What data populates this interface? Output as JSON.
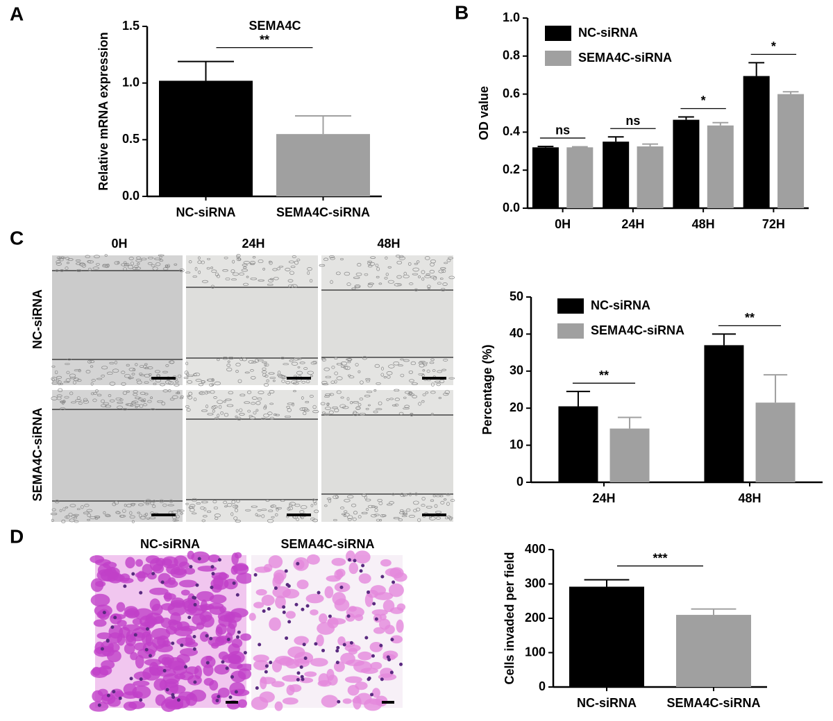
{
  "figure": {
    "panel_labels": [
      "A",
      "B",
      "C",
      "D"
    ],
    "wound_columns": [
      "0H",
      "24H",
      "48H"
    ],
    "wound_rows": [
      "NC-siRNA",
      "SEMA4C-siRNA"
    ],
    "invasion_columns": [
      "NC-siRNA",
      "SEMA4C-siRNA"
    ]
  },
  "chart_data": [
    {
      "type": "bar",
      "title": "SEMA4C",
      "ylabel": "Relative mRNA expression",
      "categories": [
        "NC-siRNA",
        "SEMA4C-siRNA"
      ],
      "values": [
        1.02,
        0.55
      ],
      "errors": [
        0.17,
        0.16
      ],
      "colors": [
        "#000000",
        "#a0a0a0"
      ],
      "annotation": "**",
      "ylim": [
        0,
        1.5
      ],
      "yticks": [
        {
          "value": 0,
          "label": "0.0"
        },
        0.5,
        {
          "value": 1,
          "label": "1.0"
        },
        1.5
      ]
    },
    {
      "type": "grouped-bar",
      "ylabel": "OD value",
      "legend": "top-left",
      "categories": [
        "0H",
        "24H",
        "48H",
        "72H"
      ],
      "series": [
        {
          "name": "NC-siRNA",
          "color": "#000000",
          "values": [
            0.32,
            0.35,
            0.465,
            0.695
          ],
          "errors": [
            0.005,
            0.025,
            0.015,
            0.07
          ]
        },
        {
          "name": "SEMA4C-siRNA",
          "color": "#a0a0a0",
          "values": [
            0.32,
            0.325,
            0.435,
            0.6
          ],
          "errors": [
            0.003,
            0.012,
            0.015,
            0.012
          ]
        }
      ],
      "annotations": [
        "ns",
        "ns",
        "*",
        "*"
      ],
      "ylim": [
        0,
        1
      ],
      "yticks": [
        {
          "value": 0,
          "label": "0.0"
        },
        0.2,
        0.4,
        0.6,
        0.8,
        {
          "value": 1,
          "label": "1.0"
        }
      ]
    },
    {
      "type": "grouped-bar",
      "ylabel": "Percentage (%)",
      "legend": "top-left",
      "categories": [
        "24H",
        "48H"
      ],
      "series": [
        {
          "name": "NC-siRNA",
          "color": "#000000",
          "values": [
            20.5,
            37
          ],
          "errors": [
            4,
            3
          ]
        },
        {
          "name": "SEMA4C-siRNA",
          "color": "#a0a0a0",
          "values": [
            14.5,
            21.5
          ],
          "errors": [
            3,
            7.5
          ]
        }
      ],
      "annotations": [
        "**",
        "**"
      ],
      "ylim": [
        0,
        50
      ],
      "yticks": [
        0,
        10,
        20,
        30,
        40,
        50
      ]
    },
    {
      "type": "bar",
      "ylabel": "Cells invaded per field",
      "categories": [
        "NC-siRNA",
        "SEMA4C-siRNA"
      ],
      "values": [
        292,
        210
      ],
      "errors": [
        20,
        17
      ],
      "colors": [
        "#000000",
        "#a0a0a0"
      ],
      "annotation": "***",
      "ylim": [
        0,
        400
      ],
      "yticks": [
        0,
        100,
        200,
        300,
        400
      ]
    }
  ]
}
